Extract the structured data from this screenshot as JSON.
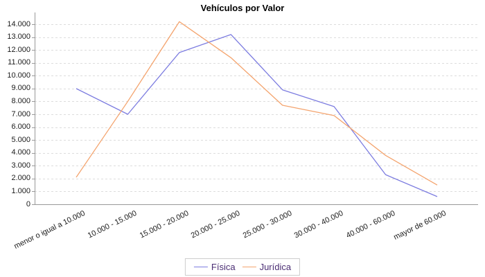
{
  "chart": {
    "colors": {
      "grid": "#dcdcdc",
      "axis": "#999999",
      "legend_border": "#cccccc",
      "legend_text": "#4a2d73",
      "title_text": "#000000",
      "tick_text": "#1a1a1a"
    }
  },
  "chart_data": {
    "type": "line",
    "title": "Vehículos por Valor",
    "xlabel": "",
    "ylabel": "",
    "categories": [
      "menor o igual a 10.000",
      "10.000 - 15.000",
      "15.000 - 20.000",
      "20.000 - 25.000",
      "25.000 - 30.000",
      "30.000 - 40.000",
      "40.000 - 60.000",
      "mayor de 60.000"
    ],
    "series": [
      {
        "name": "Física",
        "color": "#7c7ce0",
        "values": [
          9000,
          7000,
          11800,
          13200,
          8900,
          7600,
          2300,
          600
        ]
      },
      {
        "name": "Jurídica",
        "color": "#f4a46e",
        "values": [
          2100,
          8000,
          14200,
          11400,
          7700,
          6900,
          3800,
          1500
        ]
      }
    ],
    "ylim": [
      0,
      14000
    ],
    "ytick_step": 1000,
    "ytick_labels": [
      "0",
      "1.000",
      "2.000",
      "3.000",
      "4.000",
      "5.000",
      "6.000",
      "7.000",
      "8.000",
      "9.000",
      "10.000",
      "11.000",
      "12.000",
      "13.000",
      "14.000"
    ],
    "grid": "horizontal-dashed",
    "legend_position": "bottom"
  }
}
